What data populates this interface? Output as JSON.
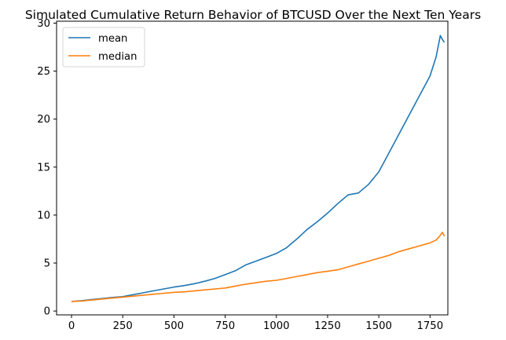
{
  "chart_data": {
    "type": "line",
    "title": "Simulated Cumulative Return Behavior of BTCUSD Over the Next Ten Years",
    "xlabel": "",
    "ylabel": "",
    "xlim": [
      -73,
      1837
    ],
    "ylim": [
      -0.4,
      30.2
    ],
    "xticks": [
      0,
      250,
      500,
      750,
      1000,
      1250,
      1500,
      1750
    ],
    "yticks": [
      0,
      5,
      10,
      15,
      20,
      25,
      30
    ],
    "grid": false,
    "legend_position": "top-left",
    "series": [
      {
        "name": "mean",
        "color": "#1f77b4",
        "x": [
          0,
          50,
          100,
          150,
          200,
          250,
          300,
          350,
          400,
          450,
          500,
          550,
          600,
          650,
          700,
          750,
          800,
          850,
          900,
          950,
          1000,
          1050,
          1100,
          1150,
          1200,
          1250,
          1300,
          1350,
          1400,
          1450,
          1500,
          1550,
          1600,
          1650,
          1700,
          1750,
          1780,
          1800,
          1810,
          1820
        ],
        "y": [
          1.0,
          1.08,
          1.2,
          1.3,
          1.42,
          1.5,
          1.7,
          1.9,
          2.1,
          2.3,
          2.5,
          2.65,
          2.85,
          3.1,
          3.4,
          3.8,
          4.2,
          4.8,
          5.2,
          5.6,
          6.0,
          6.6,
          7.5,
          8.5,
          9.3,
          10.2,
          11.2,
          12.1,
          12.3,
          13.2,
          14.5,
          16.5,
          18.5,
          20.5,
          22.5,
          24.5,
          26.5,
          28.7,
          28.3,
          28.0
        ]
      },
      {
        "name": "median",
        "color": "#ff7f0e",
        "x": [
          0,
          50,
          100,
          150,
          200,
          250,
          300,
          350,
          400,
          450,
          500,
          550,
          600,
          650,
          700,
          750,
          800,
          850,
          900,
          950,
          1000,
          1050,
          1100,
          1150,
          1200,
          1250,
          1300,
          1350,
          1400,
          1450,
          1500,
          1550,
          1600,
          1650,
          1700,
          1750,
          1780,
          1800,
          1810,
          1820
        ],
        "y": [
          1.0,
          1.05,
          1.15,
          1.25,
          1.35,
          1.45,
          1.55,
          1.65,
          1.75,
          1.85,
          1.95,
          2.0,
          2.1,
          2.2,
          2.3,
          2.4,
          2.6,
          2.8,
          2.95,
          3.1,
          3.2,
          3.4,
          3.6,
          3.8,
          4.0,
          4.15,
          4.3,
          4.6,
          4.9,
          5.2,
          5.5,
          5.8,
          6.2,
          6.5,
          6.8,
          7.1,
          7.4,
          7.9,
          8.2,
          7.8
        ]
      }
    ]
  }
}
